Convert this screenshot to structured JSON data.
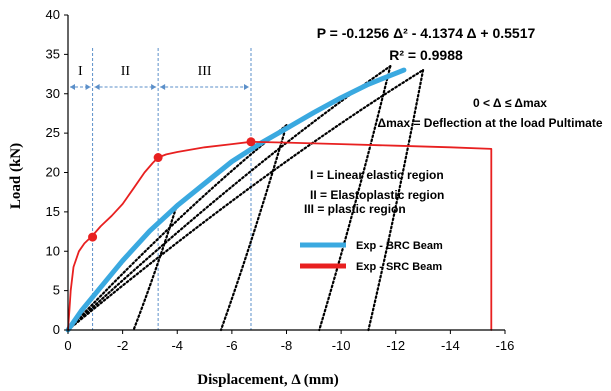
{
  "chart_data": {
    "type": "line",
    "xlabel": "Displacement, Δ  (mm)",
    "ylabel": "Load  (kN)",
    "xlim": [
      0,
      -16
    ],
    "ylim": [
      0,
      40
    ],
    "x_ticks": [
      "0",
      "-2",
      "-4",
      "-6",
      "-8",
      "-10",
      "-12",
      "-14",
      "-16"
    ],
    "y_ticks": [
      "0",
      "5",
      "10",
      "15",
      "20",
      "25",
      "30",
      "35",
      "40"
    ],
    "grid": false,
    "legend_position": "center",
    "series": [
      {
        "name": "Exp - BRC Beam",
        "color": "#3aa9e0",
        "x": [
          0,
          -0.5,
          -1.0,
          -2.0,
          -3.0,
          -4.0,
          -5.0,
          -6.0,
          -7.0,
          -8.0,
          -9.0,
          -10.0,
          -11.0,
          -12.0,
          -12.3
        ],
        "y": [
          0,
          2.5,
          4.6,
          8.8,
          12.6,
          15.8,
          18.6,
          21.4,
          23.6,
          25.6,
          27.6,
          29.5,
          31.2,
          32.6,
          33.0
        ]
      },
      {
        "name": "Exp - SRC Beam",
        "color": "#e82020",
        "x": [
          0,
          -0.05,
          -0.1,
          -0.2,
          -0.4,
          -0.6,
          -0.9,
          -1.2,
          -1.6,
          -2.0,
          -2.4,
          -2.8,
          -3.1,
          -3.3,
          -3.6,
          -4.0,
          -5.0,
          -6.0,
          -6.7,
          -8.0,
          -10.0,
          -12.0,
          -14.0,
          -15.5,
          -15.5
        ],
        "y": [
          0,
          2.5,
          5.0,
          8.0,
          10.0,
          11.0,
          12.0,
          13.2,
          14.5,
          16.0,
          18.0,
          20.0,
          21.2,
          21.9,
          22.3,
          22.6,
          23.2,
          23.6,
          23.9,
          23.8,
          23.6,
          23.4,
          23.2,
          23.0,
          0
        ]
      }
    ],
    "hysteresis": {
      "name": "cyclic loops",
      "color": "#000000",
      "loops": [
        {
          "peak_x": -4.0,
          "peak_y": 16.0,
          "return_x": -2.4
        },
        {
          "peak_x": -8.0,
          "peak_y": 26.0,
          "return_x": -5.6
        },
        {
          "peak_x": -11.8,
          "peak_y": 33.5,
          "return_x": -9.2
        },
        {
          "peak_x": -13.0,
          "peak_y": 33.0,
          "return_x": -11.0
        }
      ]
    },
    "markers": [
      {
        "x": -0.9,
        "y": 11.8,
        "color": "#e82020"
      },
      {
        "x": -3.3,
        "y": 21.9,
        "color": "#e82020"
      },
      {
        "x": -6.7,
        "y": 23.9,
        "color": "#e82020"
      }
    ],
    "region_boundaries_x": [
      -0.9,
      -3.3,
      -6.7
    ],
    "regions": [
      {
        "label": "I",
        "x_from": 0,
        "x_to": -0.9
      },
      {
        "label": "II",
        "x_from": -0.9,
        "x_to": -3.3
      },
      {
        "label": "III",
        "x_from": -3.3,
        "x_to": -6.7
      }
    ],
    "annotations": {
      "equation": "P = -0.1256 Δ² - 4.1374 Δ + 0.5517",
      "r_squared": "R² = 0.9988",
      "range": "0 < Δ ≤ Δmax",
      "delta_max": "Δmax = Deflection at the load Pultimate",
      "region_notes": [
        "I = Linear elastic region",
        "II = Elastoplastic region",
        "III = plastic region"
      ]
    }
  }
}
